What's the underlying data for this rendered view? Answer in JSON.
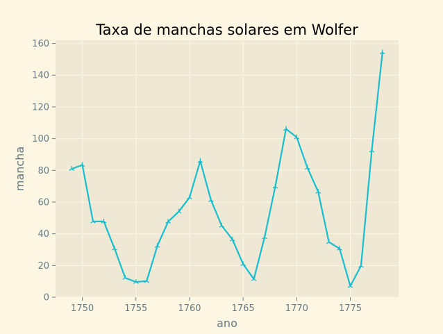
{
  "colors": {
    "figure_background": "#fdf6e3",
    "plot_background": "#eee8d5",
    "grid": "#fdf6e3",
    "line": "#17becf",
    "tick_text": "#657b83",
    "title_text": "#000000"
  },
  "chart_data": {
    "type": "line",
    "title": "Taxa de manchas solares em Wolfer",
    "xlabel": "ano",
    "ylabel": "mancha",
    "xlim": [
      1747.5,
      1779.5
    ],
    "ylim": [
      0,
      162
    ],
    "grid": true,
    "marker": "tri_up",
    "xticks": [
      1750,
      1755,
      1760,
      1765,
      1770,
      1775
    ],
    "yticks": [
      0,
      20,
      40,
      60,
      80,
      100,
      120,
      140,
      160
    ],
    "series": [
      {
        "x": [
          1749,
          1750,
          1751,
          1752,
          1753,
          1754,
          1755,
          1756,
          1757,
          1758,
          1759,
          1760,
          1761,
          1762,
          1763,
          1764,
          1765,
          1766,
          1767,
          1768,
          1769,
          1770,
          1771,
          1772,
          1773,
          1774,
          1775,
          1776,
          1777,
          1778
        ],
        "values": [
          80.9,
          83.4,
          47.7,
          47.8,
          30.7,
          12.2,
          9.6,
          10.2,
          32.4,
          47.6,
          54.0,
          62.9,
          85.9,
          61.2,
          45.1,
          36.4,
          20.9,
          11.4,
          37.8,
          69.8,
          106.1,
          100.8,
          81.6,
          66.5,
          34.8,
          30.6,
          7.0,
          19.8,
          92.5,
          154.4
        ]
      }
    ]
  }
}
